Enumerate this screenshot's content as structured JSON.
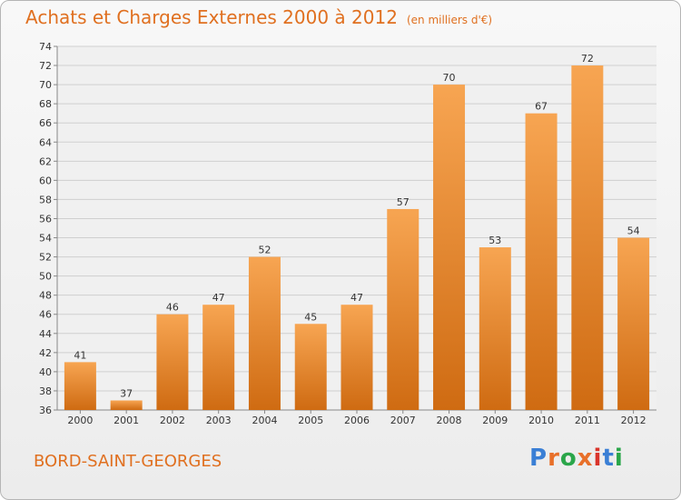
{
  "header": {
    "title": "Achats et Charges Externes 2000 à 2012",
    "unit": "(en milliers d'€)"
  },
  "footer": {
    "place": "BORD-SAINT-GEORGES",
    "logo": "Proxiti",
    "logo_colors": [
      "#3a7fd5",
      "#e8702a",
      "#2aa64a",
      "#e8702a",
      "#d9342b",
      "#3a7fd5",
      "#2aa64a"
    ]
  },
  "colors": {
    "bar_top": "#f7a552",
    "bar_bottom": "#cf6b12",
    "accent": "#e07020"
  },
  "chart_data": {
    "type": "bar",
    "categories": [
      "2000",
      "2001",
      "2002",
      "2003",
      "2004",
      "2005",
      "2006",
      "2007",
      "2008",
      "2009",
      "2010",
      "2011",
      "2012"
    ],
    "values": [
      41,
      37,
      46,
      47,
      52,
      45,
      47,
      57,
      70,
      53,
      67,
      72,
      54
    ],
    "title": "Achats et Charges Externes 2000 à 2012",
    "ylim": [
      36,
      74
    ],
    "yticks": [
      36,
      38,
      40,
      42,
      44,
      46,
      48,
      50,
      52,
      54,
      56,
      58,
      60,
      62,
      64,
      66,
      68,
      70,
      72,
      74
    ],
    "grid": true,
    "data_labels": true
  }
}
